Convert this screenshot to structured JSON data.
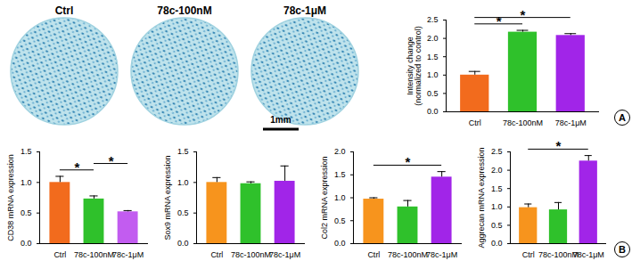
{
  "images": {
    "labels": [
      "Ctrl",
      "78c-100nM",
      "78c-1μM"
    ],
    "scale_bar": "1mm"
  },
  "chart_data": [
    {
      "type": "bar",
      "panel": "A",
      "y_label": "Intensity change\n(normalized to control)",
      "categories": [
        "Ctrl",
        "78c-100nM",
        "78c-1μM"
      ],
      "values": [
        1.0,
        2.17,
        2.08
      ],
      "errors": [
        0.1,
        0.05,
        0.05
      ],
      "colors": [
        "#f26b1d",
        "#2fc12b",
        "#a125e8"
      ],
      "ylim": [
        0,
        2.5
      ],
      "yticks": [
        {
          "value": 0,
          "label": "0.0"
        },
        {
          "value": 0.5,
          "label": "0.5"
        },
        {
          "value": 1,
          "label": "1.0"
        },
        {
          "value": 1.5,
          "label": "1.5"
        },
        {
          "value": 2,
          "label": "2.0"
        },
        {
          "value": 2.5,
          "label": "2.5"
        }
      ],
      "significance": [
        {
          "from": "Ctrl",
          "to": "78c-100nM",
          "label": "*"
        },
        {
          "from": "Ctrl",
          "to": "78c-1μM",
          "label": "*"
        }
      ]
    },
    {
      "type": "bar",
      "y_label": "CD38 mRNA expression",
      "categories": [
        "Ctrl",
        "78c-100nM",
        "78c-1μM"
      ],
      "values": [
        1.0,
        0.73,
        0.52
      ],
      "errors": [
        0.1,
        0.05,
        0.02
      ],
      "colors": [
        "#f26b1d",
        "#2fc12b",
        "#c25cf0"
      ],
      "ylim": [
        0,
        1.5
      ],
      "yticks": [
        {
          "value": 0,
          "label": "0.0"
        },
        {
          "value": 0.5,
          "label": "0.5"
        },
        {
          "value": 1,
          "label": "1.0"
        },
        {
          "value": 1.5,
          "label": "1.5"
        }
      ],
      "significance": [
        {
          "from": "Ctrl",
          "to": "78c-100nM",
          "label": "*"
        },
        {
          "from": "78c-100nM",
          "to": "78c-1μM",
          "label": "*"
        }
      ]
    },
    {
      "type": "bar",
      "y_label": "Sox9 mRNA expression",
      "categories": [
        "Ctrl",
        "78c-100nM",
        "78c-1μM"
      ],
      "values": [
        1.0,
        0.98,
        1.02
      ],
      "errors": [
        0.08,
        0.03,
        0.25
      ],
      "colors": [
        "#f7941d",
        "#2fc12b",
        "#a125e8"
      ],
      "ylim": [
        0,
        1.5
      ],
      "yticks": [
        {
          "value": 0,
          "label": "0.0"
        },
        {
          "value": 0.5,
          "label": "0.5"
        },
        {
          "value": 1,
          "label": "1.0"
        },
        {
          "value": 1.5,
          "label": "1.5"
        }
      ],
      "significance": []
    },
    {
      "type": "bar",
      "y_label": "Col2 mRNA expression",
      "categories": [
        "Ctrl",
        "78c-100nM",
        "78c-1μM"
      ],
      "values": [
        0.97,
        0.8,
        1.45
      ],
      "errors": [
        0.03,
        0.14,
        0.12
      ],
      "colors": [
        "#f7941d",
        "#2fc12b",
        "#a125e8"
      ],
      "ylim": [
        0,
        2
      ],
      "yticks": [
        {
          "value": 0,
          "label": "0.0"
        },
        {
          "value": 0.5,
          "label": "0.5"
        },
        {
          "value": 1,
          "label": "1.0"
        },
        {
          "value": 1.5,
          "label": "1.5"
        },
        {
          "value": 2,
          "label": "2.0"
        }
      ],
      "significance": [
        {
          "from": "Ctrl",
          "to": "78c-1μM",
          "label": "*"
        }
      ]
    },
    {
      "type": "bar",
      "panel": "B",
      "y_label": "Aggrecan mRNA expression",
      "categories": [
        "Ctrl",
        "78c-100nM",
        "78c-1μM"
      ],
      "values": [
        0.98,
        0.92,
        2.25
      ],
      "errors": [
        0.1,
        0.2,
        0.15
      ],
      "colors": [
        "#f7941d",
        "#2fc12b",
        "#a125e8"
      ],
      "ylim": [
        0,
        2.5
      ],
      "yticks": [
        {
          "value": 0,
          "label": "0.0"
        },
        {
          "value": 0.5,
          "label": "0.5"
        },
        {
          "value": 1,
          "label": "1.0"
        },
        {
          "value": 1.5,
          "label": "1.5"
        },
        {
          "value": 2,
          "label": "2.0"
        },
        {
          "value": 2.5,
          "label": "2.5"
        }
      ],
      "significance": [
        {
          "from": "Ctrl",
          "to": "78c-1μM",
          "label": "*"
        }
      ]
    }
  ]
}
